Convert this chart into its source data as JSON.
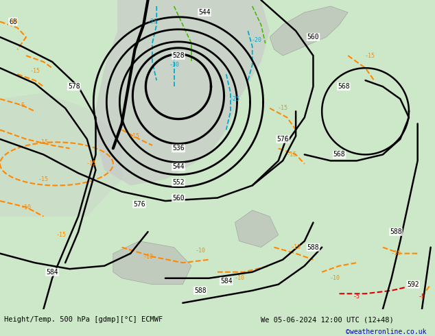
{
  "title_left": "Height/Temp. 500 hPa [gdmp][°C] ECMWF",
  "title_right": "We 05-06-2024 12:00 UTC (12+48)",
  "credit": "©weatheronline.co.uk",
  "bg_color": "#cde8c8",
  "gray_color": "#c8c8c8",
  "bottom_bar_color": "#ffffff",
  "black": "#000000",
  "orange": "#ff8800",
  "cyan": "#00aacc",
  "green_temp": "#44bb00",
  "red": "#dd0000",
  "credit_color": "#0000cc"
}
